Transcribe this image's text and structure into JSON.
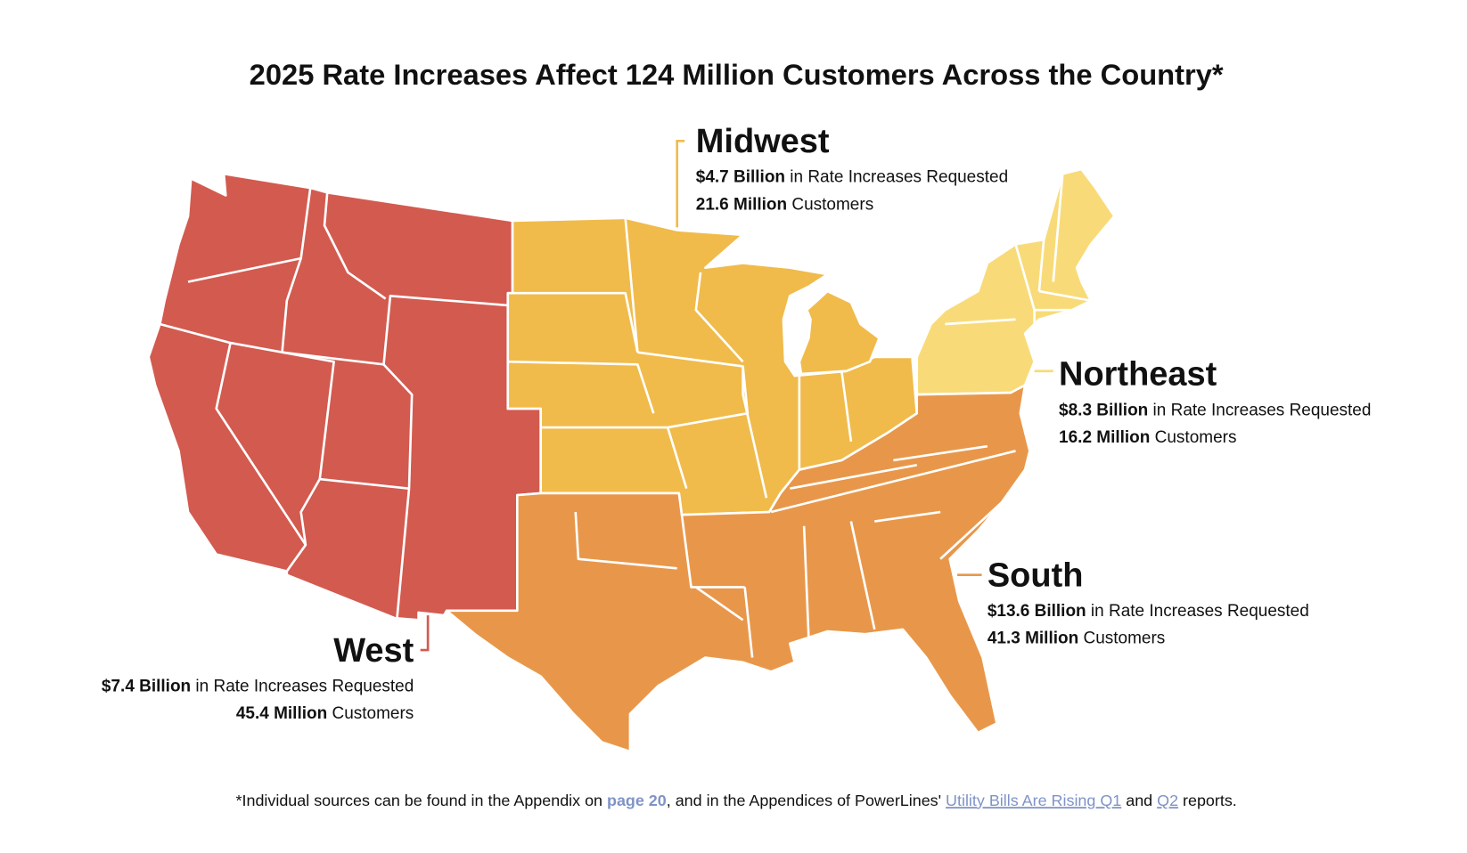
{
  "title": "2025 Rate Increases Affect 124 Million Customers Across the Country*",
  "regions": [
    {
      "name": "West",
      "color": "#d35a4f",
      "rate_bold": "$7.4 Billion",
      "rate_text": " in Rate Increases Requested",
      "customers_bold": "45.4 Million",
      "customers_text": " Customers"
    },
    {
      "name": "Midwest",
      "color": "#f0bb4b",
      "rate_bold": "$4.7 Billion",
      "rate_text": " in Rate Increases Requested",
      "customers_bold": "21.6 Million",
      "customers_text": " Customers"
    },
    {
      "name": "Northeast",
      "color": "#f8db78",
      "rate_bold": "$8.3 Billion",
      "rate_text": " in Rate Increases Requested",
      "customers_bold": "16.2 Million",
      "customers_text": " Customers"
    },
    {
      "name": "South",
      "color": "#e8974a",
      "rate_bold": "$13.6 Billion",
      "rate_text": " in Rate Increases Requested",
      "customers_bold": "41.3 Million",
      "customers_text": " Customers"
    }
  ],
  "footnote": {
    "part1": "*Individual sources can be found in the Appendix on ",
    "link1": "page 20",
    "part2": ", and in the Appendices of PowerLines' ",
    "link2": "Utility Bills Are Rising Q1",
    "part3": " and ",
    "link3": "Q2",
    "part4": " reports."
  }
}
